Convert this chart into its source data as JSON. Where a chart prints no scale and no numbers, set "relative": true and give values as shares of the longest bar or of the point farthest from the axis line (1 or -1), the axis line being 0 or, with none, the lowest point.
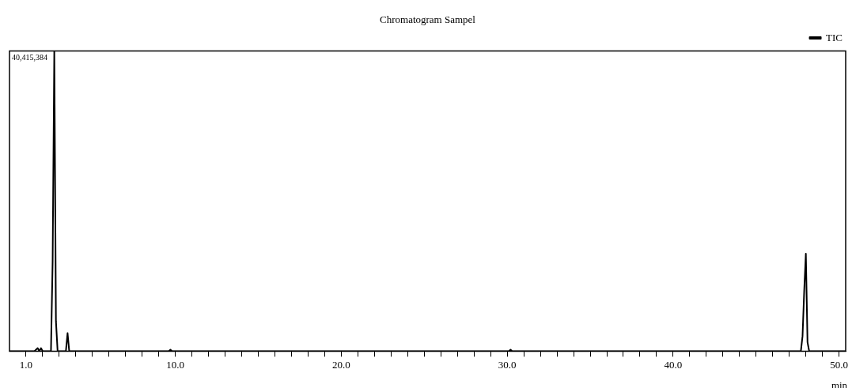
{
  "chart_data": {
    "type": "line",
    "title": "Chromatogram Sampel",
    "xlabel": "min",
    "relative": true,
    "annotations": [
      "40,415,384"
    ],
    "xlim": [
      0,
      50.4
    ],
    "xticks": [
      {
        "value": 1,
        "label": "1.0"
      },
      {
        "value": 2,
        "label": null
      },
      {
        "value": 3,
        "label": null
      },
      {
        "value": 4,
        "label": null
      },
      {
        "value": 5,
        "label": null
      },
      {
        "value": 6,
        "label": null
      },
      {
        "value": 7,
        "label": null
      },
      {
        "value": 8,
        "label": null
      },
      {
        "value": 9,
        "label": null
      },
      {
        "value": 10,
        "label": "10.0"
      },
      {
        "value": 11,
        "label": null
      },
      {
        "value": 12,
        "label": null
      },
      {
        "value": 13,
        "label": null
      },
      {
        "value": 14,
        "label": null
      },
      {
        "value": 15,
        "label": null
      },
      {
        "value": 16,
        "label": null
      },
      {
        "value": 17,
        "label": null
      },
      {
        "value": 18,
        "label": null
      },
      {
        "value": 19,
        "label": null
      },
      {
        "value": 20,
        "label": "20.0"
      },
      {
        "value": 21,
        "label": null
      },
      {
        "value": 22,
        "label": null
      },
      {
        "value": 23,
        "label": null
      },
      {
        "value": 24,
        "label": null
      },
      {
        "value": 25,
        "label": null
      },
      {
        "value": 26,
        "label": null
      },
      {
        "value": 27,
        "label": null
      },
      {
        "value": 28,
        "label": null
      },
      {
        "value": 29,
        "label": null
      },
      {
        "value": 30,
        "label": "30.0"
      },
      {
        "value": 31,
        "label": null
      },
      {
        "value": 32,
        "label": null
      },
      {
        "value": 33,
        "label": null
      },
      {
        "value": 34,
        "label": null
      },
      {
        "value": 35,
        "label": null
      },
      {
        "value": 36,
        "label": null
      },
      {
        "value": 37,
        "label": null
      },
      {
        "value": 38,
        "label": null
      },
      {
        "value": 39,
        "label": null
      },
      {
        "value": 40,
        "label": "40.0"
      },
      {
        "value": 41,
        "label": null
      },
      {
        "value": 42,
        "label": null
      },
      {
        "value": 43,
        "label": null
      },
      {
        "value": 44,
        "label": null
      },
      {
        "value": 45,
        "label": null
      },
      {
        "value": 46,
        "label": null
      },
      {
        "value": 47,
        "label": null
      },
      {
        "value": 48,
        "label": null
      },
      {
        "value": 49,
        "label": null
      },
      {
        "value": 50,
        "label": "50.0"
      }
    ],
    "x": [
      0,
      1.5,
      1.7,
      1.8,
      1.9,
      2.0,
      2.5,
      2.6,
      2.7,
      2.8,
      2.9,
      3.4,
      3.5,
      3.6,
      3.7,
      9.6,
      9.7,
      9.8,
      30.1,
      30.2,
      30.3,
      47.7,
      47.8,
      47.9,
      48.0,
      48.1,
      48.2,
      50.4
    ],
    "series": [
      {
        "name": "TIC",
        "color": "#000000",
        "values": [
          0,
          0,
          0.01,
          0,
          0.01,
          0,
          0,
          0.3,
          1,
          0.1,
          0,
          0,
          0.06,
          0,
          0,
          0,
          0.005,
          0,
          0,
          0.005,
          0,
          0,
          0.05,
          0.2,
          0.325,
          0.03,
          0,
          0
        ]
      }
    ],
    "legend": "top right",
    "grid": false,
    "marker": "none",
    "line_style": "solid"
  }
}
